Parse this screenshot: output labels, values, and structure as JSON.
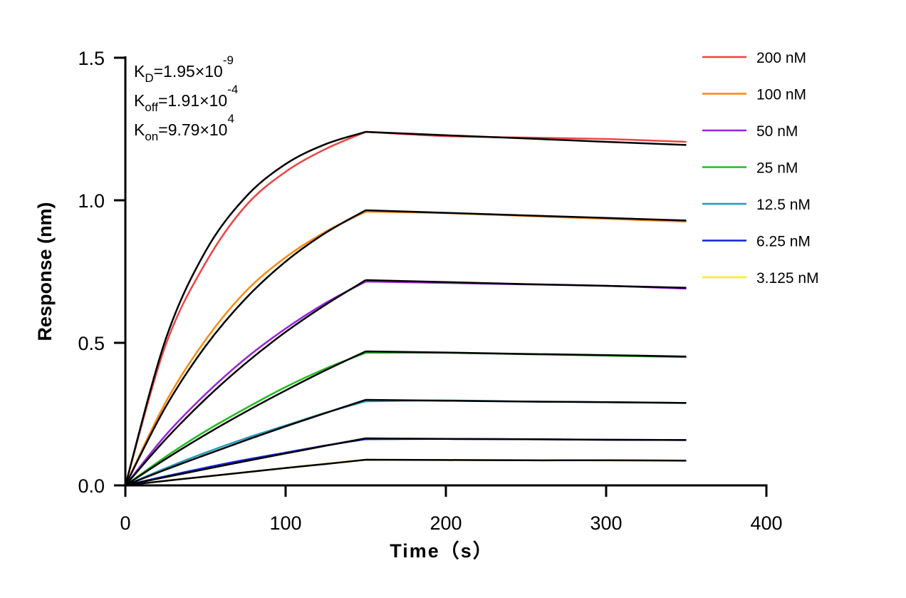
{
  "chart_data": {
    "type": "line",
    "title": "",
    "xlabel": "Time（s）",
    "ylabel": "Response (nm)",
    "xlim": [
      0,
      400
    ],
    "ylim": [
      0,
      1.5
    ],
    "xticks": [
      "0",
      "100",
      "200",
      "300",
      "400"
    ],
    "yticks": [
      "0.0",
      "0.5",
      "1.0",
      "1.5"
    ],
    "xtick_values": [
      0,
      100,
      200,
      300,
      400
    ],
    "ytick_values": [
      0,
      0.5,
      1.0,
      1.5
    ],
    "grid": false,
    "legend_position": "top-right",
    "annotations": [
      {
        "base": "K",
        "sub": "D",
        "text": "=1.95×10",
        "sup": "-9"
      },
      {
        "base": "K",
        "sub": "off",
        "text": "=1.91×10",
        "sup": "-4"
      },
      {
        "base": "K",
        "sub": "on",
        "text": "=9.79×10",
        "sup": "4"
      }
    ],
    "x": [
      0,
      25,
      50,
      75,
      100,
      125,
      150,
      200,
      250,
      300,
      350
    ],
    "fit_color": "#000000",
    "series": [
      {
        "name": "200 nM",
        "color": "#ee4444",
        "measured": [
          0,
          0.49,
          0.78,
          0.98,
          1.1,
          1.18,
          1.24,
          1.225,
          1.22,
          1.215,
          1.205
        ],
        "fit": [
          0,
          0.51,
          0.821,
          1.011,
          1.127,
          1.197,
          1.24,
          1.228,
          1.217,
          1.205,
          1.194
        ]
      },
      {
        "name": "100 nM",
        "color": "#ff8811",
        "measured": [
          0,
          0.29,
          0.51,
          0.68,
          0.8,
          0.89,
          0.96,
          0.955,
          0.945,
          0.935,
          0.925
        ],
        "fit": [
          0,
          0.274,
          0.488,
          0.655,
          0.785,
          0.886,
          0.965,
          0.956,
          0.947,
          0.938,
          0.929
        ]
      },
      {
        "name": "50 nM",
        "color": "#9922dd",
        "measured": [
          0,
          0.175,
          0.32,
          0.445,
          0.55,
          0.64,
          0.715,
          0.71,
          0.705,
          0.7,
          0.69
        ],
        "fit": [
          0,
          0.161,
          0.303,
          0.428,
          0.538,
          0.634,
          0.72,
          0.713,
          0.706,
          0.7,
          0.693
        ]
      },
      {
        "name": "25 nM",
        "color": "#22bb22",
        "measured": [
          0,
          0.1,
          0.19,
          0.27,
          0.345,
          0.41,
          0.465,
          0.465,
          0.46,
          0.455,
          0.45
        ],
        "fit": [
          0,
          0.092,
          0.178,
          0.258,
          0.333,
          0.404,
          0.47,
          0.466,
          0.461,
          0.457,
          0.452
        ]
      },
      {
        "name": "12.5 nM",
        "color": "#2299bb",
        "measured": [
          0,
          0.06,
          0.115,
          0.165,
          0.21,
          0.255,
          0.295,
          0.298,
          0.294,
          0.292,
          0.289
        ],
        "fit": [
          0,
          0.055,
          0.107,
          0.158,
          0.207,
          0.254,
          0.3,
          0.297,
          0.294,
          0.292,
          0.289
        ]
      },
      {
        "name": "6.25 nM",
        "color": "#1122dd",
        "measured": [
          0,
          0.032,
          0.062,
          0.09,
          0.115,
          0.14,
          0.162,
          0.163,
          0.162,
          0.16,
          0.159
        ],
        "fit": [
          0,
          0.029,
          0.057,
          0.085,
          0.112,
          0.139,
          0.165,
          0.163,
          0.162,
          0.16,
          0.159
        ]
      },
      {
        "name": "3.125 nM",
        "color": "#ffee11",
        "measured": [
          0,
          0.016,
          0.031,
          0.046,
          0.061,
          0.076,
          0.09,
          0.089,
          0.088,
          0.087,
          0.086
        ],
        "fit": [
          0,
          0.016,
          0.031,
          0.046,
          0.061,
          0.075,
          0.09,
          0.089,
          0.088,
          0.088,
          0.087
        ]
      }
    ]
  }
}
